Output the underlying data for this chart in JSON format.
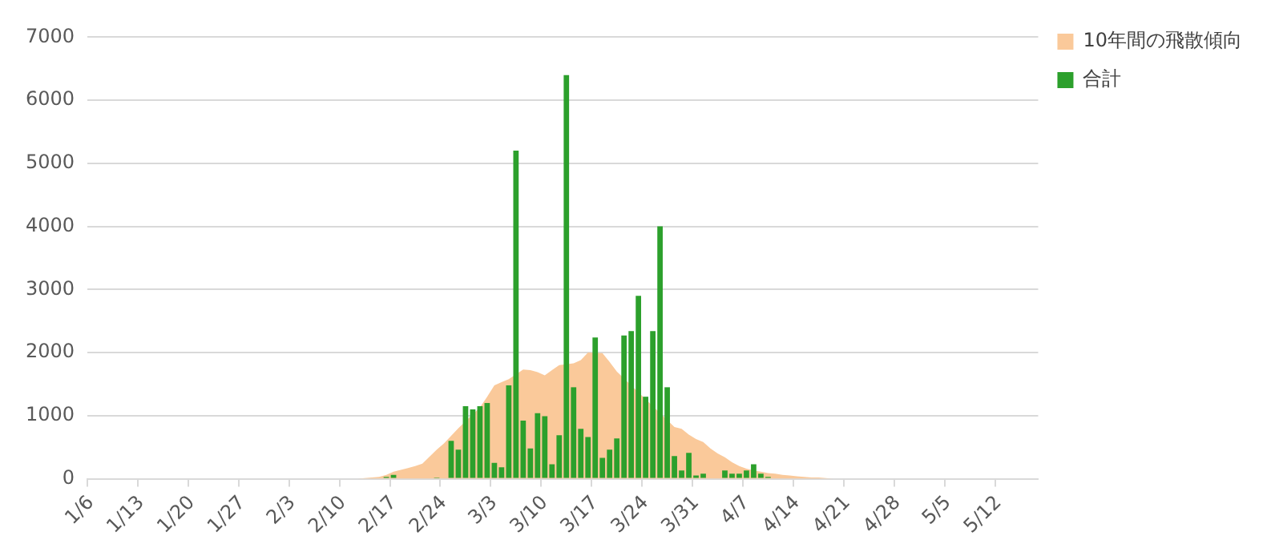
{
  "chart_data": {
    "type": "bar",
    "categories": [
      "1/6",
      null,
      null,
      null,
      null,
      null,
      null,
      "1/13",
      null,
      null,
      null,
      null,
      null,
      null,
      "1/20",
      null,
      null,
      null,
      null,
      null,
      null,
      "1/27",
      null,
      null,
      null,
      null,
      null,
      null,
      "2/3",
      null,
      null,
      null,
      null,
      null,
      null,
      "2/10",
      null,
      null,
      null,
      null,
      null,
      null,
      "2/17",
      null,
      null,
      null,
      null,
      null,
      null,
      "2/24",
      null,
      null,
      null,
      null,
      null,
      null,
      "3/3",
      null,
      null,
      null,
      null,
      null,
      null,
      "3/10",
      null,
      null,
      null,
      null,
      null,
      null,
      "3/17",
      null,
      null,
      null,
      null,
      null,
      null,
      "3/24",
      null,
      null,
      null,
      null,
      null,
      null,
      "3/31",
      null,
      null,
      null,
      null,
      null,
      null,
      "4/7",
      null,
      null,
      null,
      null,
      null,
      null,
      "4/14",
      null,
      null,
      null,
      null,
      null,
      null,
      "4/21",
      null,
      null,
      null,
      null,
      null,
      null,
      "4/28",
      null,
      null,
      null,
      null,
      null,
      null,
      "5/5",
      null,
      null,
      null,
      null,
      null,
      null,
      "5/12",
      null,
      null,
      null,
      null,
      null
    ],
    "series": [
      {
        "name": "10年間の飛散傾向",
        "type": "area",
        "color": "#fac99a",
        "values": [
          0,
          0,
          0,
          0,
          0,
          0,
          0,
          0,
          0,
          0,
          0,
          0,
          0,
          0,
          0,
          0,
          0,
          0,
          0,
          0,
          0,
          0,
          0,
          0,
          0,
          0,
          0,
          0,
          0,
          0,
          0,
          0,
          0,
          0,
          0,
          0,
          0,
          0,
          10,
          20,
          30,
          60,
          110,
          140,
          170,
          200,
          240,
          350,
          460,
          560,
          680,
          800,
          null,
          null,
          1130,
          1300,
          1480,
          1530,
          1580,
          null,
          1730,
          1720,
          1690,
          1640,
          1720,
          1800,
          null,
          1830,
          1880,
          2000,
          null,
          1990,
          1850,
          1700,
          null,
          null,
          null,
          null,
          null,
          null,
          null,
          820,
          790,
          700,
          630,
          580,
          480,
          400,
          340,
          260,
          200,
          160,
          130,
          110,
          90,
          80,
          60,
          50,
          40,
          30,
          20,
          20,
          10,
          0,
          0,
          0,
          0,
          0,
          0,
          0,
          0,
          0,
          0,
          0,
          0,
          0,
          0,
          0,
          0,
          0,
          0,
          0,
          0,
          0,
          0,
          0,
          0,
          0,
          0,
          0,
          0,
          0
        ]
      },
      {
        "name": "合計",
        "color": "#2ca02c",
        "values": [
          null,
          null,
          null,
          null,
          null,
          null,
          null,
          null,
          null,
          null,
          null,
          null,
          null,
          null,
          null,
          null,
          null,
          null,
          null,
          null,
          null,
          null,
          null,
          null,
          null,
          null,
          null,
          null,
          null,
          null,
          null,
          null,
          null,
          null,
          null,
          null,
          null,
          null,
          null,
          null,
          null,
          30,
          60,
          null,
          null,
          null,
          null,
          null,
          20,
          null,
          600,
          460,
          1150,
          1100,
          1150,
          1200,
          250,
          180,
          1480,
          5200,
          920,
          480,
          1040,
          990,
          230,
          690,
          6400,
          1450,
          790,
          660,
          2240,
          330,
          460,
          640,
          2270,
          2340,
          2900,
          1300,
          2340,
          4000,
          1450,
          360,
          130,
          410,
          50,
          80,
          null,
          null,
          130,
          80,
          80,
          130,
          230,
          80,
          30,
          null,
          null,
          null,
          null,
          null,
          null,
          null,
          null,
          null,
          null,
          null,
          null,
          null,
          null,
          null,
          null,
          null,
          null,
          null,
          null,
          null,
          null,
          null,
          null,
          null,
          null,
          null,
          null,
          null,
          null,
          null,
          null,
          null,
          null,
          null,
          null,
          null
        ]
      }
    ],
    "ylim": [
      0,
      7000
    ],
    "yticks": [
      0,
      1000,
      2000,
      3000,
      4000,
      5000,
      6000,
      7000
    ],
    "grid": "y",
    "legend": "top right"
  }
}
